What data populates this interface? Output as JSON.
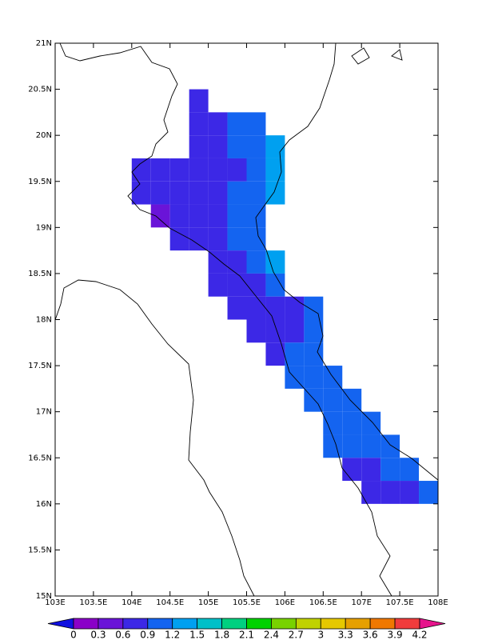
{
  "map": {
    "xlim": [
      103,
      108
    ],
    "ylim": [
      15,
      21
    ],
    "xticks": [
      {
        "value": 103,
        "label": "103E"
      },
      {
        "value": 103.5,
        "label": "103.5E"
      },
      {
        "value": 104,
        "label": "104E"
      },
      {
        "value": 104.5,
        "label": "104.5E"
      },
      {
        "value": 105,
        "label": "105E"
      },
      {
        "value": 105.5,
        "label": "105.5E"
      },
      {
        "value": 106,
        "label": "106E"
      },
      {
        "value": 106.5,
        "label": "106.5E"
      },
      {
        "value": 107,
        "label": "107E"
      },
      {
        "value": 107.5,
        "label": "107.5E"
      },
      {
        "value": 108,
        "label": "108E"
      }
    ],
    "yticks": [
      {
        "value": 15,
        "label": "15N"
      },
      {
        "value": 15.5,
        "label": "15.5N"
      },
      {
        "value": 16,
        "label": "16N"
      },
      {
        "value": 16.5,
        "label": "16.5N"
      },
      {
        "value": 17,
        "label": "17N"
      },
      {
        "value": 17.5,
        "label": "17.5N"
      },
      {
        "value": 18,
        "label": "18N"
      },
      {
        "value": 18.5,
        "label": "18.5N"
      },
      {
        "value": 19,
        "label": "19N"
      },
      {
        "value": 19.5,
        "label": "19.5N"
      },
      {
        "value": 20,
        "label": "20N"
      },
      {
        "value": 20.5,
        "label": "20.5N"
      },
      {
        "value": 21,
        "label": "21N"
      }
    ],
    "cells": [
      [
        104.0,
        19.5,
        0.8
      ],
      [
        104.0,
        19.25,
        0.8
      ],
      [
        104.25,
        19.5,
        0.8
      ],
      [
        104.25,
        19.25,
        0.8
      ],
      [
        104.25,
        19.0,
        0.5
      ],
      [
        104.5,
        19.5,
        0.8
      ],
      [
        104.5,
        19.25,
        0.8
      ],
      [
        104.5,
        19.0,
        0.8
      ],
      [
        104.5,
        18.75,
        0.8
      ],
      [
        104.75,
        20.25,
        0.8
      ],
      [
        104.75,
        20.0,
        0.8
      ],
      [
        104.75,
        19.75,
        0.8
      ],
      [
        104.75,
        19.5,
        0.8
      ],
      [
        104.75,
        19.25,
        0.8
      ],
      [
        104.75,
        19.0,
        0.8
      ],
      [
        104.75,
        18.75,
        0.8
      ],
      [
        105.0,
        20.0,
        0.8
      ],
      [
        105.0,
        19.75,
        0.8
      ],
      [
        105.0,
        19.5,
        0.8
      ],
      [
        105.0,
        19.25,
        0.8
      ],
      [
        105.0,
        19.0,
        0.8
      ],
      [
        105.0,
        18.75,
        0.8
      ],
      [
        105.0,
        18.5,
        0.8
      ],
      [
        105.0,
        18.25,
        0.8
      ],
      [
        105.25,
        20.0,
        1.0
      ],
      [
        105.25,
        19.75,
        1.0
      ],
      [
        105.25,
        19.5,
        0.8
      ],
      [
        105.25,
        19.25,
        1.0
      ],
      [
        105.25,
        19.0,
        1.0
      ],
      [
        105.25,
        18.75,
        1.0
      ],
      [
        105.25,
        18.5,
        0.8
      ],
      [
        105.25,
        18.25,
        0.8
      ],
      [
        105.25,
        18.0,
        0.8
      ],
      [
        105.5,
        20.0,
        1.0
      ],
      [
        105.5,
        19.75,
        1.0
      ],
      [
        105.5,
        19.5,
        1.0
      ],
      [
        105.5,
        19.25,
        1.0
      ],
      [
        105.5,
        19.0,
        1.0
      ],
      [
        105.5,
        18.75,
        1.0
      ],
      [
        105.5,
        18.5,
        1.0
      ],
      [
        105.5,
        18.25,
        0.8
      ],
      [
        105.5,
        18.0,
        0.8
      ],
      [
        105.5,
        17.75,
        0.8
      ],
      [
        105.75,
        19.75,
        1.3
      ],
      [
        105.75,
        19.5,
        1.3
      ],
      [
        105.75,
        19.25,
        1.3
      ],
      [
        105.75,
        18.5,
        1.3
      ],
      [
        105.75,
        18.25,
        1.0
      ],
      [
        105.75,
        18.0,
        0.8
      ],
      [
        105.75,
        17.75,
        0.8
      ],
      [
        105.75,
        17.5,
        0.8
      ],
      [
        106.0,
        18.0,
        0.8
      ],
      [
        106.0,
        17.75,
        0.8
      ],
      [
        106.0,
        17.5,
        1.0
      ],
      [
        106.0,
        17.25,
        1.0
      ],
      [
        106.25,
        18.0,
        1.0
      ],
      [
        106.25,
        17.75,
        1.0
      ],
      [
        106.25,
        17.5,
        1.0
      ],
      [
        106.25,
        17.25,
        1.0
      ],
      [
        106.25,
        17.0,
        1.0
      ],
      [
        106.5,
        17.25,
        1.0
      ],
      [
        106.5,
        17.0,
        1.0
      ],
      [
        106.5,
        16.75,
        1.0
      ],
      [
        106.5,
        16.5,
        1.0
      ],
      [
        106.75,
        17.0,
        1.0
      ],
      [
        106.75,
        16.75,
        1.0
      ],
      [
        106.75,
        16.5,
        1.0
      ],
      [
        106.75,
        16.25,
        0.8
      ],
      [
        107.0,
        16.75,
        1.0
      ],
      [
        107.0,
        16.5,
        1.0
      ],
      [
        107.0,
        16.25,
        0.8
      ],
      [
        107.0,
        16.0,
        0.8
      ],
      [
        107.25,
        16.5,
        1.0
      ],
      [
        107.25,
        16.25,
        1.0
      ],
      [
        107.25,
        16.0,
        0.8
      ],
      [
        107.5,
        16.25,
        1.0
      ],
      [
        107.5,
        16.0,
        0.8
      ],
      [
        107.75,
        16.0,
        1.0
      ]
    ],
    "colorbar": {
      "levels": [
        0,
        0.3,
        0.6,
        0.9,
        1.2,
        1.5,
        1.8,
        2.1,
        2.4,
        2.7,
        3,
        3.3,
        3.6,
        3.9,
        4.2
      ],
      "colors": [
        "#1010e0",
        "#8a00c8",
        "#6a14d8",
        "#3c28e6",
        "#1464f0",
        "#00a0f0",
        "#00c0c8",
        "#00d080",
        "#00d200",
        "#78d200",
        "#c0d200",
        "#e6c800",
        "#e6a000",
        "#f07800",
        "#f03c3c",
        "#e6148c"
      ]
    }
  }
}
